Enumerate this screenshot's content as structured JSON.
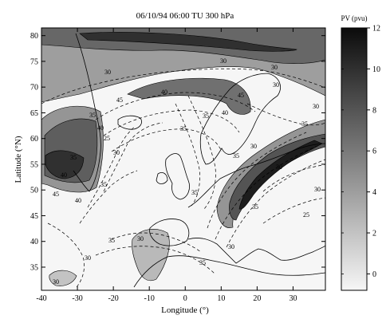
{
  "title": "06/10/94 06:00 TU  300 hPa",
  "x_axis": {
    "label": "Longitude (°)",
    "ticks": [
      "-40",
      "-30",
      "-20",
      "-10",
      "0",
      "10",
      "20",
      "30"
    ],
    "tick_values": [
      -40,
      -30,
      -20,
      -10,
      0,
      10,
      20,
      30
    ],
    "range": [
      -40,
      39
    ]
  },
  "y_axis": {
    "label": "Latitude (°N)",
    "ticks": [
      "35",
      "40",
      "45",
      "50",
      "55",
      "60",
      "65",
      "70",
      "75",
      "80"
    ],
    "tick_values": [
      35,
      40,
      45,
      50,
      55,
      60,
      65,
      70,
      75,
      80
    ],
    "range": [
      30.5,
      81.5
    ]
  },
  "colorbar": {
    "label": "PV (pvu)",
    "ticks": [
      "0",
      "2",
      "4",
      "6",
      "8",
      "10",
      "12"
    ],
    "tick_values": [
      0,
      2,
      4,
      6,
      8,
      10,
      12
    ],
    "range": [
      -0.8,
      12
    ],
    "color_low": "#f6f6f6",
    "color_high": "#0b0b0b"
  },
  "wind_contour_labels": [
    "30",
    "30",
    "30",
    "35",
    "40",
    "45",
    "40",
    "35",
    "30",
    "45",
    "35",
    "40",
    "35",
    "30",
    "25",
    "30",
    "35",
    "40",
    "45",
    "40",
    "35",
    "35",
    "30",
    "35",
    "30",
    "35",
    "30",
    "25",
    "30",
    "35",
    "30",
    "30",
    "35",
    "30"
  ],
  "pv_regions": [
    {
      "name": "pv-region-greenland-outer",
      "pv": 4.5
    },
    {
      "name": "pv-region-greenland-inner",
      "pv": 7.5
    },
    {
      "name": "pv-region-greenland-core",
      "pv": 10
    },
    {
      "name": "pv-region-arctic-outer",
      "pv": 4
    },
    {
      "name": "pv-region-arctic-band",
      "pv": 7
    },
    {
      "name": "pv-region-arctic-core",
      "pv": 10
    },
    {
      "name": "pv-region-norway-trough",
      "pv": 6.5
    },
    {
      "name": "pv-region-europe-trough-outer",
      "pv": 4.5
    },
    {
      "name": "pv-region-europe-trough-inner",
      "pv": 8
    },
    {
      "name": "pv-region-europe-trough-core",
      "pv": 11
    },
    {
      "name": "pv-region-africa-cutoff",
      "pv": 2.5
    },
    {
      "name": "pv-region-atlantic-cutoff",
      "pv": 2
    }
  ]
}
